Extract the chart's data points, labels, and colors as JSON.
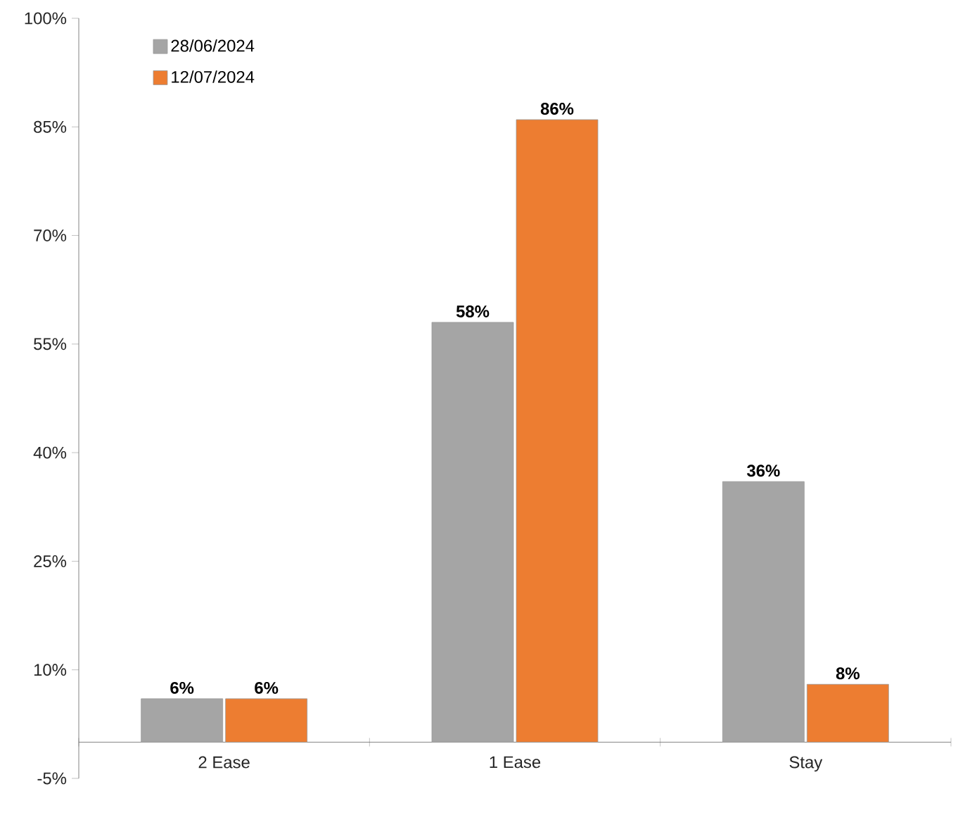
{
  "chart_data": {
    "type": "bar",
    "categories": [
      "2 Ease",
      "1 Ease",
      "Stay"
    ],
    "series": [
      {
        "name": "28/06/2024",
        "color": "#a5a5a5",
        "values": [
          6,
          58,
          36
        ],
        "value_labels": [
          "6%",
          "58%",
          "36%"
        ]
      },
      {
        "name": "12/07/2024",
        "color": "#ed7d31",
        "values": [
          6,
          86,
          8
        ],
        "value_labels": [
          "6%",
          "86%",
          "8%"
        ]
      }
    ],
    "ylim": [
      -5,
      100
    ],
    "yticks": [
      {
        "value": -5,
        "label": "-5%"
      },
      {
        "value": 10,
        "label": "10%"
      },
      {
        "value": 25,
        "label": "25%"
      },
      {
        "value": 40,
        "label": "40%"
      },
      {
        "value": 55,
        "label": "55%"
      },
      {
        "value": 70,
        "label": "70%"
      },
      {
        "value": 85,
        "label": "85%"
      },
      {
        "value": 100,
        "label": "100%"
      }
    ],
    "grid": false,
    "legend": "top left"
  }
}
